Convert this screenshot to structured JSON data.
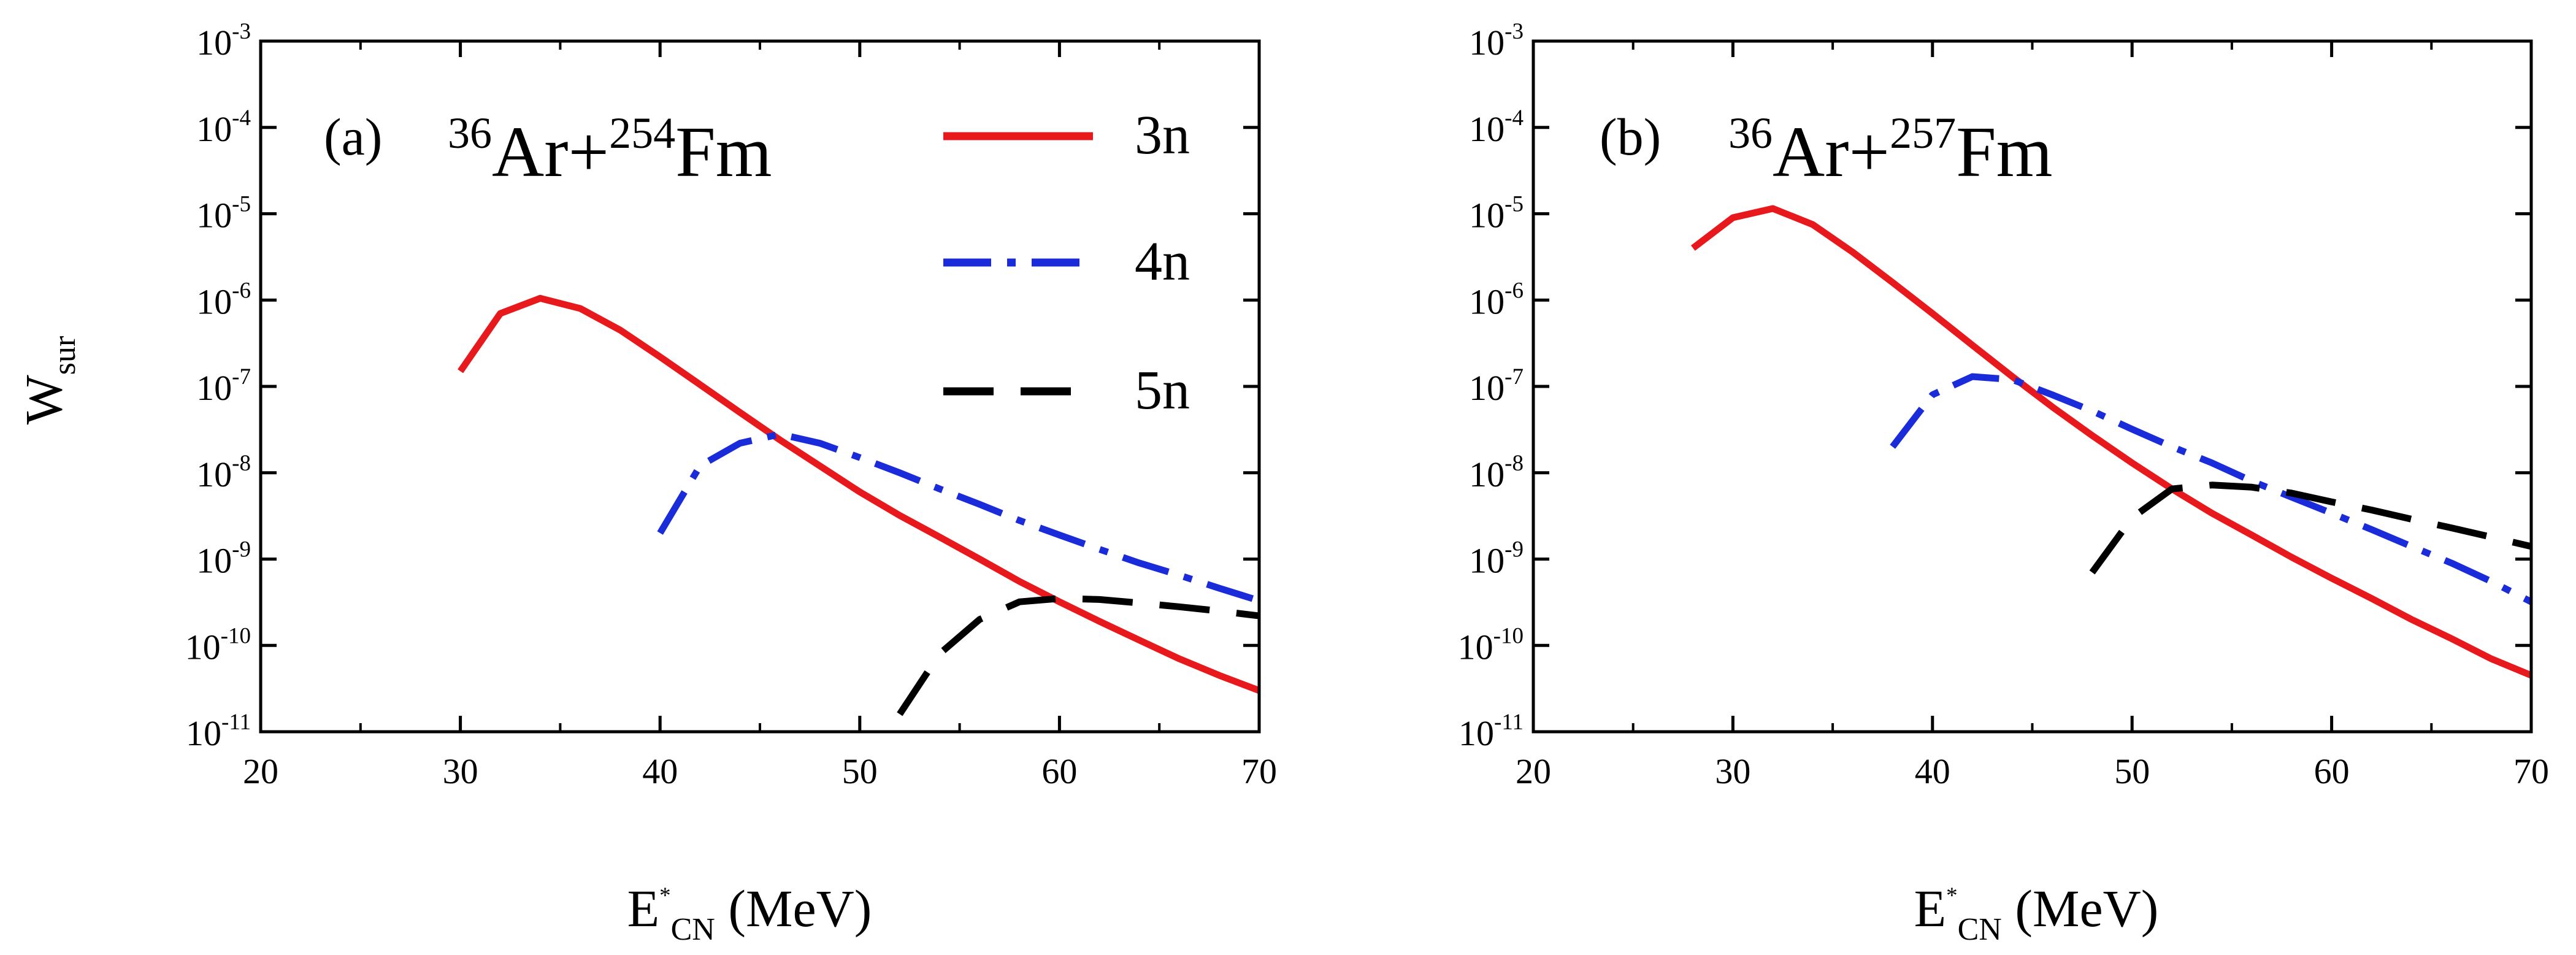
{
  "chart_data": [
    {
      "type": "line",
      "panel": "(a)",
      "reaction": {
        "a1": "36",
        "p1": "Ar",
        "plus": "+",
        "a2": "254",
        "p2": "Fm"
      },
      "xlabel": {
        "base": "E",
        "sup": "*",
        "sub": "CN",
        "unit": " (MeV)"
      },
      "ylabel": {
        "base": "W",
        "sub": "sur"
      },
      "xlim": [
        20,
        70
      ],
      "ylim": [
        1e-11,
        0.001
      ],
      "yscale": "log",
      "xticks": [
        "20",
        "30",
        "40",
        "50",
        "60",
        "70"
      ],
      "yticks": [
        {
          "base": "10",
          "exp": "-3"
        },
        {
          "base": "10",
          "exp": "-4"
        },
        {
          "base": "10",
          "exp": "-5"
        },
        {
          "base": "10",
          "exp": "-6"
        },
        {
          "base": "10",
          "exp": "-7"
        },
        {
          "base": "10",
          "exp": "-8"
        },
        {
          "base": "10",
          "exp": "-9"
        },
        {
          "base": "10",
          "exp": "-10"
        },
        {
          "base": "10",
          "exp": "-11"
        }
      ],
      "legend": {
        "placement": "top-right"
      },
      "series": [
        {
          "name": "3n",
          "color": "#e8191c",
          "style": "solid",
          "x": [
            30,
            32,
            34,
            36,
            38,
            40,
            42,
            44,
            46,
            48,
            50,
            52,
            54,
            56,
            58,
            60,
            62,
            64,
            66,
            68,
            70
          ],
          "y": [
            1.5e-07,
            7e-07,
            1.05e-06,
            8e-07,
            4.5e-07,
            2.2e-07,
            1.05e-07,
            5e-08,
            2.4e-08,
            1.2e-08,
            6e-09,
            3.2e-09,
            1.8e-09,
            1e-09,
            5.5e-10,
            3.2e-10,
            1.9e-10,
            1.15e-10,
            7e-11,
            4.5e-11,
            3e-11
          ]
        },
        {
          "name": "4n",
          "color": "#1a2bd9",
          "style": "dash-dot",
          "x": [
            40,
            42,
            44,
            46,
            48,
            50,
            52,
            54,
            56,
            58,
            60,
            62,
            64,
            66,
            68,
            70
          ],
          "y": [
            2e-09,
            1.2e-08,
            2.2e-08,
            2.8e-08,
            2.2e-08,
            1.5e-08,
            1e-08,
            6.5e-09,
            4.3e-09,
            2.8e-09,
            1.9e-09,
            1.3e-09,
            9e-10,
            6.5e-10,
            4.6e-10,
            3.3e-10
          ]
        },
        {
          "name": "5n",
          "color": "#000000",
          "style": "dashed",
          "x": [
            52,
            54,
            56,
            58,
            60,
            62,
            64,
            66,
            68,
            70
          ],
          "y": [
            1.6e-11,
            8e-11,
            2e-10,
            3.2e-10,
            3.5e-10,
            3.4e-10,
            3.1e-10,
            2.8e-10,
            2.5e-10,
            2.2e-10
          ]
        }
      ]
    },
    {
      "type": "line",
      "panel": "(b)",
      "reaction": {
        "a1": "36",
        "p1": "Ar",
        "plus": "+",
        "a2": "257",
        "p2": "Fm"
      },
      "xlabel": {
        "base": "E",
        "sup": "*",
        "sub": "CN",
        "unit": " (MeV)"
      },
      "xlim": [
        20,
        70
      ],
      "ylim": [
        1e-11,
        0.001
      ],
      "yscale": "log",
      "xticks": [
        "20",
        "30",
        "40",
        "50",
        "60",
        "70"
      ],
      "yticks": [
        {
          "base": "10",
          "exp": "-3"
        },
        {
          "base": "10",
          "exp": "-4"
        },
        {
          "base": "10",
          "exp": "-5"
        },
        {
          "base": "10",
          "exp": "-6"
        },
        {
          "base": "10",
          "exp": "-7"
        },
        {
          "base": "10",
          "exp": "-8"
        },
        {
          "base": "10",
          "exp": "-9"
        },
        {
          "base": "10",
          "exp": "-10"
        },
        {
          "base": "10",
          "exp": "-11"
        }
      ],
      "series": [
        {
          "name": "3n",
          "color": "#e8191c",
          "style": "solid",
          "x": [
            28,
            30,
            32,
            34,
            36,
            38,
            40,
            42,
            44,
            46,
            48,
            50,
            52,
            54,
            56,
            58,
            60,
            62,
            64,
            66,
            68,
            70
          ],
          "y": [
            4e-06,
            9e-06,
            1.15e-05,
            7.5e-06,
            3.6e-06,
            1.6e-06,
            7e-07,
            3e-07,
            1.3e-07,
            5.8e-08,
            2.7e-08,
            1.3e-08,
            6.5e-09,
            3.4e-09,
            1.9e-09,
            1.05e-09,
            6e-10,
            3.5e-10,
            2e-10,
            1.2e-10,
            7e-11,
            4.5e-11
          ]
        },
        {
          "name": "4n",
          "color": "#1a2bd9",
          "style": "dash-dot",
          "x": [
            38,
            40,
            42,
            44,
            46,
            48,
            50,
            52,
            54,
            56,
            58,
            60,
            62,
            64,
            66,
            68,
            70
          ],
          "y": [
            2e-08,
            8e-08,
            1.3e-07,
            1.2e-07,
            8e-08,
            5.2e-08,
            3.2e-08,
            2e-08,
            1.3e-08,
            8e-09,
            5.2e-09,
            3.4e-09,
            2.2e-09,
            1.4e-09,
            9e-10,
            5.5e-10,
            3.2e-10
          ]
        },
        {
          "name": "5n",
          "color": "#000000",
          "style": "dashed",
          "x": [
            48,
            50,
            52,
            54,
            56,
            58,
            60,
            62,
            64,
            66,
            68,
            70
          ],
          "y": [
            7e-10,
            3e-09,
            6.5e-09,
            7.2e-09,
            6.8e-09,
            5.8e-09,
            4.6e-09,
            3.7e-09,
            2.9e-09,
            2.3e-09,
            1.8e-09,
            1.4e-09
          ]
        }
      ]
    }
  ]
}
